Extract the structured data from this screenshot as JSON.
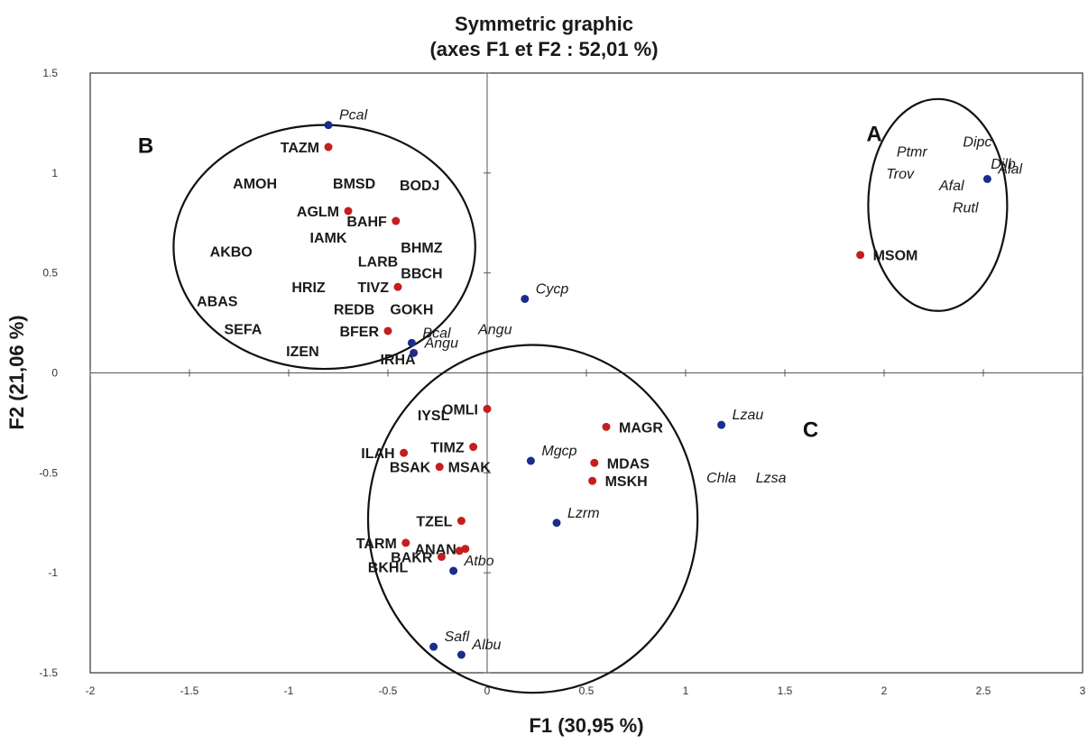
{
  "chart_data": {
    "type": "scatter",
    "title": "Symmetric graphic",
    "subtitle": "(axes F1 et F2 : 52,01 %)",
    "xlabel": "F1 (30,95 %)",
    "ylabel": "F2 (21,06 %)",
    "xlim": [
      -2,
      3
    ],
    "ylim": [
      -1.5,
      1.5
    ],
    "xticks": [
      "-2",
      "-1.5",
      "-1",
      "-0.5",
      "0",
      "0.5",
      "1",
      "1.5",
      "2",
      "2.5",
      "3"
    ],
    "yticks": [
      "-1.5",
      "-1",
      "-0.5",
      "0",
      "0.5",
      "1",
      "1.5"
    ],
    "colors": {
      "sites": "#c41e1e",
      "species": "#1a2d8c"
    },
    "sites": [
      {
        "x": -0.8,
        "y": 1.13,
        "label": "TAZM"
      },
      {
        "x": -0.7,
        "y": 0.81,
        "label": "AGLM"
      },
      {
        "x": -0.46,
        "y": 0.76,
        "label": "BAHF"
      },
      {
        "x": -0.45,
        "y": 0.43,
        "label": "TIVZ"
      },
      {
        "x": -0.5,
        "y": 0.21,
        "label": "BFER"
      },
      {
        "x": 1.88,
        "y": 0.59,
        "label": "MSOM"
      },
      {
        "x": 0.0,
        "y": -0.18,
        "label": "OMLI"
      },
      {
        "x": 0.6,
        "y": -0.27,
        "label": "MAGR"
      },
      {
        "x": -0.07,
        "y": -0.37,
        "label": "TIMZ"
      },
      {
        "x": -0.42,
        "y": -0.4,
        "label": "ILAH"
      },
      {
        "x": -0.24,
        "y": -0.47,
        "label": "BSAK"
      },
      {
        "x": 0.54,
        "y": -0.45,
        "label": "MDAS"
      },
      {
        "x": 0.53,
        "y": -0.54,
        "label": "MSKH"
      },
      {
        "x": -0.13,
        "y": -0.74,
        "label": "TZEL"
      },
      {
        "x": -0.41,
        "y": -0.85,
        "label": "TARM"
      },
      {
        "x": -0.23,
        "y": -0.92,
        "label": "BAKR"
      },
      {
        "x": -0.14,
        "y": -0.89,
        "label": ""
      },
      {
        "x": -0.11,
        "y": -0.88,
        "label": "ANAN"
      }
    ],
    "species": [
      {
        "x": -0.8,
        "y": 1.24,
        "label": "Pcal"
      },
      {
        "x": 0.19,
        "y": 0.37,
        "label": "Cycp"
      },
      {
        "x": -0.38,
        "y": 0.15,
        "label": "Bcal"
      },
      {
        "x": -0.37,
        "y": 0.1,
        "label": "Angu"
      },
      {
        "x": 2.52,
        "y": 0.97,
        "label": "Alal"
      },
      {
        "x": 1.18,
        "y": -0.26,
        "label": "Lzau"
      },
      {
        "x": 0.22,
        "y": -0.44,
        "label": "Mgcp"
      },
      {
        "x": 0.35,
        "y": -0.75,
        "label": "Lzrm"
      },
      {
        "x": -0.17,
        "y": -0.99,
        "label": "Atbo"
      },
      {
        "x": -0.27,
        "y": -1.37,
        "label": "Safl"
      },
      {
        "x": -0.13,
        "y": -1.41,
        "label": "Albu"
      }
    ],
    "extra_site_labels": [
      {
        "x": -1.17,
        "y": 0.95,
        "label": "AMOH"
      },
      {
        "x": -0.67,
        "y": 0.95,
        "label": "BMSD"
      },
      {
        "x": -0.34,
        "y": 0.94,
        "label": "BODJ"
      },
      {
        "x": -0.8,
        "y": 0.68,
        "label": "IAMK"
      },
      {
        "x": -1.29,
        "y": 0.61,
        "label": "AKBO"
      },
      {
        "x": -0.33,
        "y": 0.63,
        "label": "BHMZ"
      },
      {
        "x": -0.55,
        "y": 0.56,
        "label": "LARB"
      },
      {
        "x": -0.33,
        "y": 0.5,
        "label": "BBCH"
      },
      {
        "x": -0.9,
        "y": 0.43,
        "label": "HRIZ"
      },
      {
        "x": -1.36,
        "y": 0.36,
        "label": "ABAS"
      },
      {
        "x": -0.67,
        "y": 0.32,
        "label": "REDB"
      },
      {
        "x": -0.38,
        "y": 0.32,
        "label": "GOKH"
      },
      {
        "x": -1.23,
        "y": 0.22,
        "label": "SEFA"
      },
      {
        "x": -0.93,
        "y": 0.11,
        "label": "IZEN"
      },
      {
        "x": -0.45,
        "y": 0.07,
        "label": "IRHA"
      },
      {
        "x": -0.27,
        "y": -0.21,
        "label": "IYSL"
      },
      {
        "x": -0.09,
        "y": -0.47,
        "label": "MSAK"
      },
      {
        "x": -0.5,
        "y": -0.97,
        "label": "BKHL"
      }
    ],
    "extra_species_labels": [
      {
        "x": 2.14,
        "y": 1.11,
        "label": "Ptmr"
      },
      {
        "x": 2.47,
        "y": 1.16,
        "label": "Dipc"
      },
      {
        "x": 2.6,
        "y": 1.05,
        "label": "Dilb"
      },
      {
        "x": 2.08,
        "y": 1.0,
        "label": "Trov"
      },
      {
        "x": 2.34,
        "y": 0.94,
        "label": "Afal"
      },
      {
        "x": 2.41,
        "y": 0.83,
        "label": "Rutl"
      },
      {
        "x": 1.18,
        "y": -0.52,
        "label": "Chla"
      },
      {
        "x": 1.43,
        "y": -0.52,
        "label": "Lzsa"
      },
      {
        "x": 0.04,
        "y": 0.22,
        "label": "Angu"
      }
    ],
    "groups": [
      {
        "name": "A",
        "cx": 2.27,
        "cy": 0.84,
        "rx": 0.35,
        "ry": 0.53,
        "label_x": 1.95,
        "label_y": 1.16
      },
      {
        "name": "B",
        "cx": -0.82,
        "cy": 0.63,
        "rx": 0.76,
        "ry": 0.61,
        "label_x": -1.72,
        "label_y": 1.1
      },
      {
        "name": "C",
        "cx": 0.23,
        "cy": -0.73,
        "rx": 0.83,
        "ry": 0.87,
        "label_x": 1.63,
        "label_y": -0.32
      }
    ]
  }
}
